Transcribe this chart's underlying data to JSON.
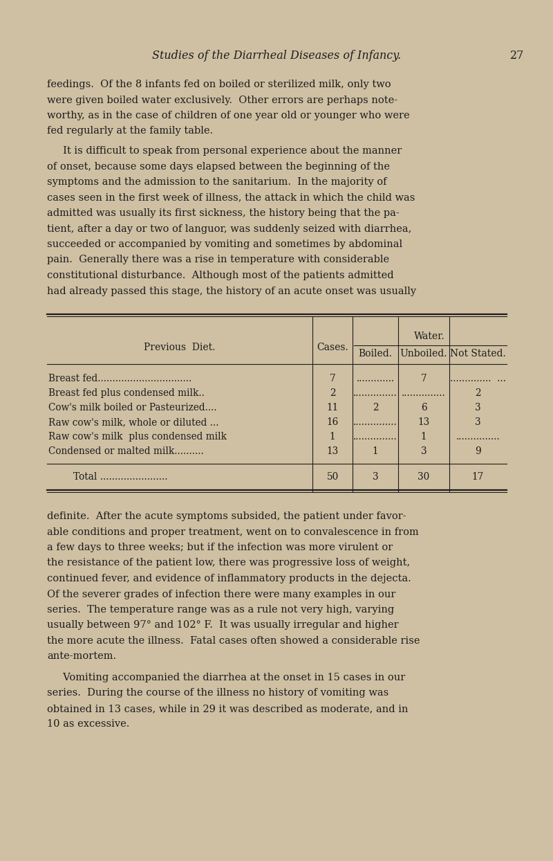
{
  "bg_color": "#cfc0a3",
  "text_color": "#1c1c1c",
  "page_title": "Studies of the Diarrheal Diseases of Infancy.",
  "page_number": "27",
  "para1_lines": [
    "feedings.  Of the 8 infants fed on boiled or sterilized milk, only two",
    "were given boiled water exclusively.  Other errors are perhaps note-",
    "worthy, as in the case of children of one year old or younger who were",
    "fed regularly at the family table."
  ],
  "para2_lines": [
    "     It is difficult to speak from personal experience about the manner",
    "of onset, because some days elapsed between the beginning of the",
    "symptoms and the admission to the sanitarium.  In the majority of",
    "cases seen in the first week of illness, the attack in which the child was",
    "admitted was usually its first sickness, the history being that the pa-",
    "tient, after a day or two of languor, was suddenly seized with diarrhea,",
    "succeeded or accompanied by vomiting and sometimes by abdominal",
    "pain.  Generally there was a rise in temperature with considerable",
    "constitutional disturbance.  Although most of the patients admitted",
    "had already passed this stage, the history of an acute onset was usually"
  ],
  "para3_lines": [
    "definite.  After the acute symptoms subsided, the patient under favor-",
    "able conditions and proper treatment, went on to convalescence in from",
    "a few days to three weeks; but if the infection was more virulent or",
    "the resistance of the patient low, there was progressive loss of weight,",
    "continued fever, and evidence of inflammatory products in the dejecta.",
    "Of the severer grades of infection there were many examples in our",
    "series.  The temperature range was as a rule not very high, varying",
    "usually between 97° and 102° F.  It was usually irregular and higher",
    "the more acute the illness.  Fatal cases often showed a considerable rise",
    "ante-mortem."
  ],
  "para4_lines": [
    "     Vomiting accompanied the diarrhea at the onset in 15 cases in our",
    "series.  During the course of the illness no history of vomiting was",
    "obtained in 13 cases, while in 29 it was described as moderate, and in",
    "10 as excessive."
  ],
  "table_rows": [
    {
      "diet": "Breast fed................................",
      "cases": "7",
      "boiled": ".............",
      "unboiled": "7",
      "not_stated": "..............  ..."
    },
    {
      "diet": "Breast fed plus condensed milk..",
      "cases": "2",
      "boiled": "...............",
      "unboiled": "...............",
      "not_stated": "2"
    },
    {
      "diet": "Cow's milk boiled or Pasteurized....",
      "cases": "11",
      "boiled": "2",
      "unboiled": "6",
      "not_stated": "3"
    },
    {
      "diet": "Raw cow's milk, whole or diluted ...",
      "cases": "16",
      "boiled": "...............",
      "unboiled": "13",
      "not_stated": "3"
    },
    {
      "diet": "Raw cow's milk  plus condensed milk",
      "cases": "1",
      "boiled": "...............",
      "unboiled": "1",
      "not_stated": "..............."
    },
    {
      "diet": "Condensed or malted milk..........",
      "cases": "13",
      "boiled": "1",
      "unboiled": "3",
      "not_stated": "9"
    }
  ],
  "total_cases": "50",
  "total_boiled": "3",
  "total_unboiled": "30",
  "total_not_stated": "17",
  "lw": 0.8,
  "title_fontsize": 11.5,
  "body_fontsize": 10.5,
  "table_fontsize": 9.8,
  "table_header_fontsize": 10.0
}
